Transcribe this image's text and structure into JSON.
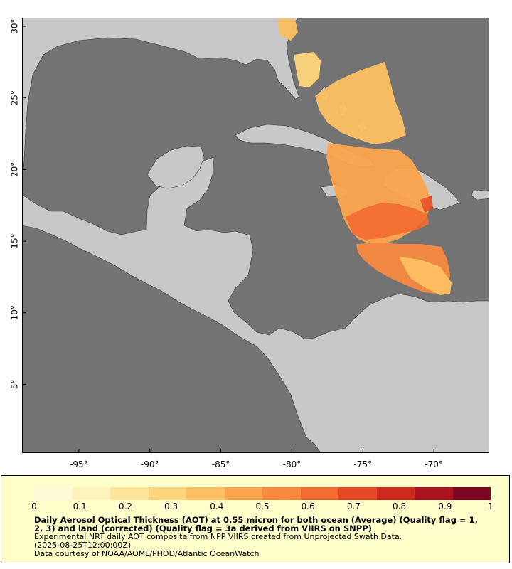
{
  "map": {
    "lon_range": [
      -99,
      -66.1
    ],
    "lat_range": [
      0.2,
      30.6
    ],
    "x_ticks": [
      {
        "value": -95,
        "label": "-95°"
      },
      {
        "value": -90,
        "label": "-90°"
      },
      {
        "value": -85,
        "label": "-85°"
      },
      {
        "value": -80,
        "label": "-80°"
      },
      {
        "value": -75,
        "label": "-75°"
      },
      {
        "value": -70,
        "label": "-70°"
      }
    ],
    "y_ticks": [
      {
        "value": 5,
        "label": "5°"
      },
      {
        "value": 10,
        "label": "10°"
      },
      {
        "value": 15,
        "label": "15°"
      },
      {
        "value": 20,
        "label": "20°"
      },
      {
        "value": 25,
        "label": "25°"
      },
      {
        "value": 30,
        "label": "30°"
      }
    ],
    "colors": {
      "ocean": "#737373",
      "land": "#c8c8c8",
      "borders": "#3a3a3a",
      "rivers": "#7fb3e6"
    }
  },
  "legend": {
    "colorbar_ticks": [
      "0",
      "0.1",
      "0.2",
      "0.3",
      "0.4",
      "0.5",
      "0.6",
      "0.7",
      "0.8",
      "0.9",
      "1"
    ],
    "colorbar_colors": [
      "#fffbd9",
      "#fff2bb",
      "#ffe59a",
      "#fed57c",
      "#fdc062",
      "#fca54f",
      "#fa8a3f",
      "#f36b31",
      "#e44a25",
      "#cd2a1e",
      "#ab1420",
      "#7d0627"
    ],
    "title": "Daily Aerosol Optical Thickness (AOT) at 0.55 micron for both ocean (Average) (Quality flag = 1, 2, 3) and land (corrected) (Quality flag = 3a derived from VIIRS on SNPP)",
    "line1": "Experimental NRT daily AOT composite from NPP VIIRS created from Unprojected Swath Data.",
    "line2": "(2025-08-25T12:00:00Z)",
    "line3": "Data courtesy of NOAA/AOML/PHOD/Atlantic OceanWatch"
  }
}
